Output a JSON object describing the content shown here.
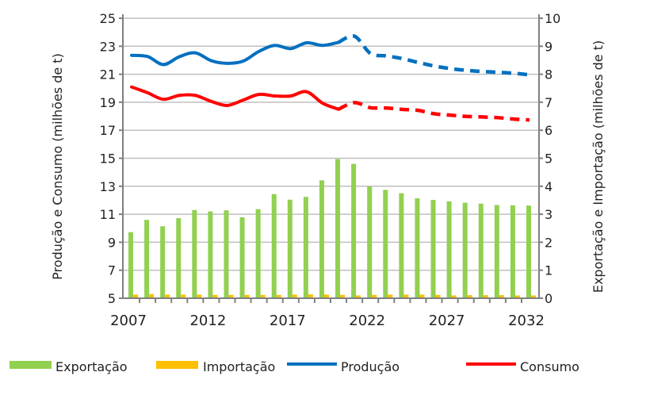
{
  "chart_data": {
    "type": "bar+line",
    "x": [
      2007,
      2008,
      2009,
      2010,
      2011,
      2012,
      2013,
      2014,
      2015,
      2016,
      2017,
      2018,
      2019,
      2020,
      2021,
      2022,
      2023,
      2024,
      2025,
      2026,
      2027,
      2028,
      2029,
      2030,
      2031,
      2032
    ],
    "x_tick_labels": [
      "2007",
      "2012",
      "2017",
      "2022",
      "2027",
      "2032"
    ],
    "ylabel_left": "Produção e Consumo (milhões de t)",
    "ylabel_right": "Exportação e Importação (milhões de t)",
    "ylim_left": [
      5,
      25
    ],
    "ylim_right": [
      0,
      10
    ],
    "y_ticks_left": [
      "5",
      "7",
      "9",
      "11",
      "13",
      "15",
      "17",
      "19",
      "21",
      "23",
      "25"
    ],
    "y_ticks_right": [
      "0",
      "1",
      "2",
      "3",
      "4",
      "5",
      "6",
      "7",
      "8",
      "9",
      "10"
    ],
    "grid": true,
    "legend_position": "bottom",
    "projection_start": 2020,
    "series": [
      {
        "name": "Exportação",
        "kind": "bar",
        "axis": "right",
        "color": "#92d050",
        "values": [
          2.36,
          2.8,
          2.57,
          2.86,
          3.15,
          3.1,
          3.14,
          2.89,
          3.18,
          3.72,
          3.52,
          3.62,
          4.21,
          4.97,
          4.8,
          3.99,
          3.87,
          3.75,
          3.57,
          3.51,
          3.46,
          3.41,
          3.38,
          3.33,
          3.32,
          3.31
        ]
      },
      {
        "name": "Importação",
        "kind": "bar",
        "axis": "right",
        "color": "#ffc000",
        "values": [
          0.13,
          0.15,
          0.13,
          0.13,
          0.13,
          0.12,
          0.12,
          0.12,
          0.12,
          0.12,
          0.13,
          0.14,
          0.13,
          0.12,
          0.1,
          0.12,
          0.13,
          0.13,
          0.13,
          0.12,
          0.1,
          0.11,
          0.11,
          0.11,
          0.1,
          0.1
        ]
      },
      {
        "name": "Produção",
        "kind": "line",
        "axis": "left",
        "color": "#0070c0",
        "values": [
          22.35,
          22.27,
          21.69,
          22.25,
          22.53,
          21.97,
          21.78,
          21.93,
          22.63,
          23.06,
          22.83,
          23.25,
          23.06,
          23.28,
          23.72,
          22.49,
          22.31,
          22.12,
          21.84,
          21.59,
          21.41,
          21.28,
          21.2,
          21.14,
          21.07,
          20.96
        ]
      },
      {
        "name": "Consumo",
        "kind": "line",
        "axis": "left",
        "color": "#ff0000",
        "values": [
          20.09,
          19.68,
          19.21,
          19.49,
          19.49,
          19.06,
          18.77,
          19.15,
          19.56,
          19.45,
          19.45,
          19.75,
          18.93,
          18.5,
          18.97,
          18.61,
          18.59,
          18.49,
          18.42,
          18.18,
          18.08,
          17.99,
          17.95,
          17.9,
          17.8,
          17.73
        ]
      }
    ]
  },
  "legend": {
    "items": [
      {
        "label": "Exportação",
        "color": "#92d050",
        "kind": "bar"
      },
      {
        "label": "Importação",
        "color": "#ffc000",
        "kind": "bar"
      },
      {
        "label": "Produção",
        "color": "#0070c0",
        "kind": "line"
      },
      {
        "label": "Consumo",
        "color": "#ff0000",
        "kind": "line"
      }
    ]
  }
}
